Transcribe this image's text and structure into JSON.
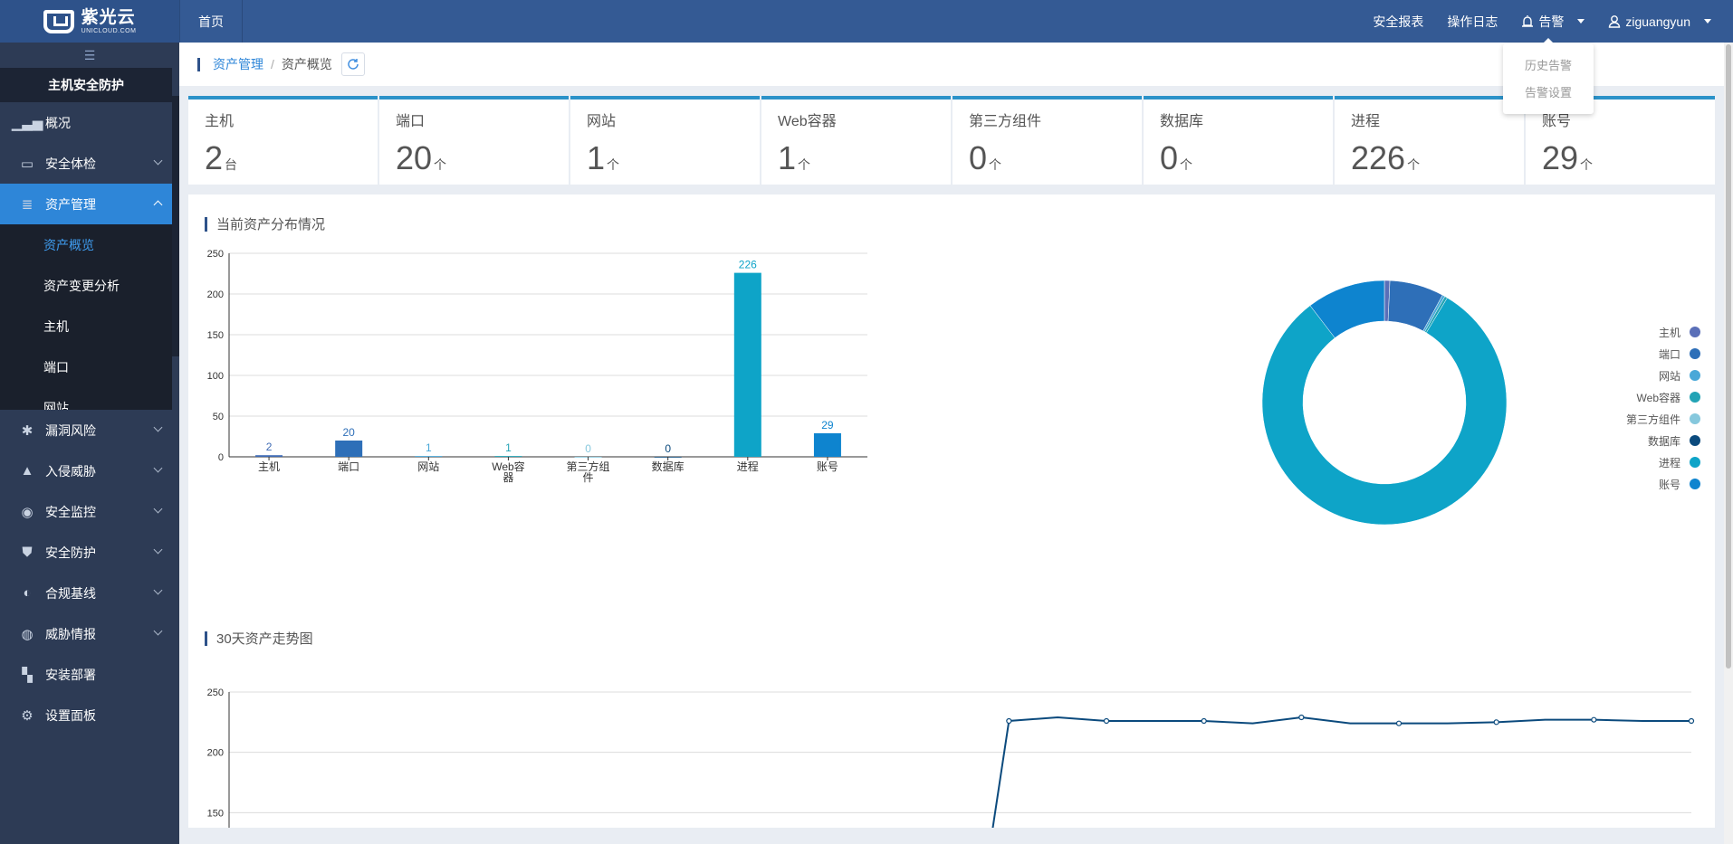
{
  "header": {
    "logo_cn": "紫光云",
    "logo_en": "UNICLOUD.COM",
    "home": "首页",
    "links": [
      "安全报表",
      "操作日志"
    ],
    "alarm": "告警",
    "user": "ziguangyun"
  },
  "alarm_menu": [
    "历史告警",
    "告警设置"
  ],
  "sidebar": {
    "title": "主机安全防护",
    "items": [
      {
        "label": "概况",
        "icon": "bar-chart-icon"
      },
      {
        "label": "安全体检",
        "icon": "checkup-icon"
      },
      {
        "label": "资产管理",
        "icon": "database-icon"
      },
      {
        "label": "漏洞风险",
        "icon": "bug-icon"
      },
      {
        "label": "入侵威胁",
        "icon": "warning-icon"
      },
      {
        "label": "安全监控",
        "icon": "monitor-icon"
      },
      {
        "label": "安全防护",
        "icon": "shield-icon"
      },
      {
        "label": "合规基线",
        "icon": "baseline-icon"
      },
      {
        "label": "威胁情报",
        "icon": "intel-icon"
      },
      {
        "label": "安装部署",
        "icon": "deploy-icon"
      },
      {
        "label": "设置面板",
        "icon": "gear-icon"
      }
    ],
    "subitems": [
      "资产概览",
      "资产变更分析",
      "主机",
      "端口",
      "网站"
    ]
  },
  "breadcrumb": {
    "parent": "资产管理",
    "sep": "/",
    "current": "资产概览"
  },
  "stats": [
    {
      "label": "主机",
      "value": "2",
      "unit": "台"
    },
    {
      "label": "端口",
      "value": "20",
      "unit": "个"
    },
    {
      "label": "网站",
      "value": "1",
      "unit": "个"
    },
    {
      "label": "Web容器",
      "value": "1",
      "unit": "个"
    },
    {
      "label": "第三方组件",
      "value": "0",
      "unit": "个"
    },
    {
      "label": "数据库",
      "value": "0",
      "unit": "个"
    },
    {
      "label": "进程",
      "value": "226",
      "unit": "个"
    },
    {
      "label": "账号",
      "value": "29",
      "unit": "个"
    }
  ],
  "sections": {
    "distribution": "当前资产分布情况",
    "trend": "30天资产走势图"
  },
  "colors": {
    "brand": "#345a94",
    "accent": "#2e86d8"
  },
  "chart_data": [
    {
      "type": "bar",
      "categories": [
        "主机",
        "端口",
        "网站",
        "Web容器",
        "第三方组件",
        "数据库",
        "进程",
        "账号"
      ],
      "values": [
        2,
        20,
        1,
        1,
        0,
        0,
        226,
        29
      ],
      "colors": [
        "#3f6bb5",
        "#2e6fb8",
        "#4aa8d8",
        "#22a3b5",
        "#86c8dd",
        "#0b4a7d",
        "#0ea4c8",
        "#0e84cf"
      ],
      "ylim": [
        0,
        250
      ],
      "yticks": [
        0,
        50,
        100,
        150,
        200,
        250
      ]
    },
    {
      "type": "pie",
      "labels": [
        "主机",
        "端口",
        "网站",
        "Web容器",
        "第三方组件",
        "数据库",
        "进程",
        "账号"
      ],
      "values": [
        2,
        20,
        1,
        1,
        0,
        0,
        226,
        29
      ],
      "colors": [
        "#5a6fb8",
        "#2e6fb8",
        "#4aa8d8",
        "#22a3b5",
        "#86c8dd",
        "#0b4a7d",
        "#0ea4c8",
        "#0e84cf"
      ],
      "legend": "right"
    },
    {
      "type": "line",
      "values": [
        null,
        null,
        null,
        null,
        null,
        null,
        null,
        null,
        null,
        null,
        null,
        null,
        null,
        null,
        null,
        null,
        226,
        229,
        226,
        226,
        226,
        224,
        229,
        224,
        224,
        224,
        225,
        227,
        227,
        226,
        226
      ],
      "ylim": [
        100,
        250
      ],
      "yticks": [
        150,
        200,
        250
      ]
    }
  ]
}
